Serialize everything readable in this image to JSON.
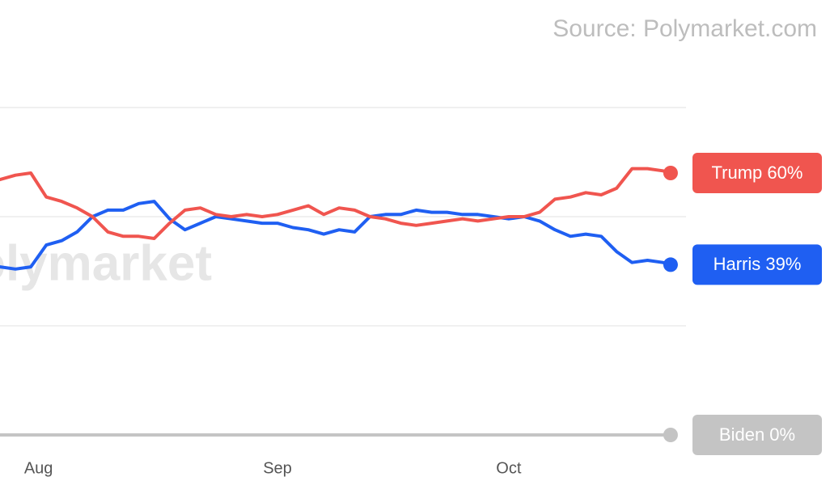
{
  "chart_data": {
    "type": "line",
    "source": "Source: Polymarket.com",
    "watermark": "Polymarket",
    "x": [
      0,
      2,
      4,
      6,
      8,
      10,
      12,
      14,
      16,
      18,
      20,
      22,
      24,
      26,
      28,
      30,
      32,
      34,
      36,
      38,
      40,
      42,
      44,
      46,
      48,
      50,
      52,
      54,
      56,
      58,
      60,
      62,
      64,
      66,
      68,
      70,
      72,
      74,
      76,
      78,
      80,
      82,
      84,
      86,
      87
    ],
    "xlim": [
      0,
      89
    ],
    "xticks": [
      {
        "value": 5,
        "label": "Aug"
      },
      {
        "value": 36,
        "label": "Sep"
      },
      {
        "value": 66,
        "label": "Oct"
      }
    ],
    "ylim": [
      0,
      100
    ],
    "yticks": [
      25,
      50,
      75
    ],
    "grid": true,
    "series": [
      {
        "name": "Trump 60%",
        "color": "#f0554f",
        "values": [
          58.5,
          59.5,
          60,
          54.5,
          53.5,
          52,
          50,
          46.5,
          45.5,
          45.5,
          45,
          48.5,
          51.5,
          52,
          50.5,
          50,
          50.5,
          50,
          50.5,
          51.5,
          52.5,
          50.5,
          52,
          51.5,
          50,
          49.5,
          48.5,
          48,
          48.5,
          49,
          49.5,
          49,
          49.5,
          50,
          50,
          51,
          54,
          54.5,
          55.5,
          55,
          56.5,
          61,
          61,
          60.5,
          60
        ]
      },
      {
        "name": "Harris 39%",
        "color": "#1f5ff2",
        "values": [
          38.5,
          38,
          38.5,
          43.5,
          44.5,
          46.5,
          50,
          51.5,
          51.5,
          53,
          53.5,
          49.5,
          47,
          48.5,
          50,
          49.5,
          49,
          48.5,
          48.5,
          47.5,
          47,
          46,
          47,
          46.5,
          50,
          50.5,
          50.5,
          51.5,
          51,
          51,
          50.5,
          50.5,
          50,
          49.5,
          50,
          49,
          47,
          45.5,
          46,
          45.5,
          42,
          39.5,
          40,
          39.5,
          39
        ]
      },
      {
        "name": "Biden 0%",
        "color": "#c4c4c4",
        "values": [
          0,
          0,
          0,
          0,
          0,
          0,
          0,
          0,
          0,
          0,
          0,
          0,
          0,
          0,
          0,
          0,
          0,
          0,
          0,
          0,
          0,
          0,
          0,
          0,
          0,
          0,
          0,
          0,
          0,
          0,
          0,
          0,
          0,
          0,
          0,
          0,
          0,
          0,
          0,
          0,
          0,
          0,
          0,
          0,
          0
        ]
      }
    ]
  }
}
